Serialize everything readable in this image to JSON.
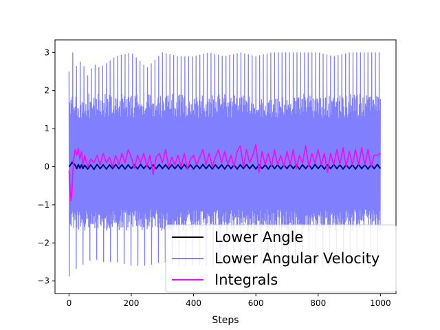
{
  "chart_data": {
    "type": "line",
    "title": "",
    "xlabel": "Steps",
    "ylabel": "",
    "xlim": [
      -45,
      1050
    ],
    "ylim": [
      -3.33,
      3.33
    ],
    "xticks": [
      0,
      200,
      400,
      600,
      800,
      1000
    ],
    "xtick_labels": [
      "0",
      "200",
      "400",
      "600",
      "800",
      "1000"
    ],
    "yticks": [
      -3,
      -2,
      -1,
      0,
      1,
      2,
      3
    ],
    "ytick_labels": [
      "−3",
      "−2",
      "−1",
      "0",
      "1",
      "2",
      "3"
    ],
    "grid": false,
    "legend_position": "lower-right",
    "series": [
      {
        "name": "Lower Angle",
        "color": "#000080",
        "x": [
          0,
          5,
          10,
          15,
          20,
          25,
          30,
          35,
          40,
          45,
          50,
          60,
          70,
          80,
          90,
          100,
          110,
          120,
          130,
          140,
          150,
          160,
          170,
          180,
          190,
          200,
          210,
          220,
          230,
          240,
          250,
          260,
          270,
          280,
          290,
          300,
          310,
          320,
          330,
          340,
          350,
          360,
          370,
          380,
          390,
          400,
          410,
          420,
          430,
          440,
          450,
          460,
          470,
          480,
          490,
          500,
          510,
          520,
          530,
          540,
          550,
          560,
          570,
          580,
          590,
          600,
          610,
          620,
          630,
          640,
          650,
          660,
          670,
          680,
          690,
          700,
          710,
          720,
          730,
          740,
          750,
          760,
          770,
          780,
          790,
          800,
          810,
          820,
          830,
          840,
          850,
          860,
          870,
          880,
          890,
          900,
          910,
          920,
          930,
          940,
          950,
          960,
          970,
          980,
          990,
          1000
        ],
        "y": [
          0.0,
          0.05,
          0.12,
          0.08,
          0.04,
          -0.05,
          0.06,
          -0.04,
          0.05,
          -0.05,
          0.04,
          -0.06,
          0.05,
          -0.07,
          0.06,
          -0.05,
          0.05,
          -0.06,
          0.05,
          -0.05,
          0.06,
          -0.05,
          0.05,
          -0.06,
          0.05,
          -0.05,
          0.05,
          -0.06,
          0.06,
          -0.05,
          0.05,
          -0.06,
          0.05,
          -0.05,
          0.06,
          -0.05,
          0.05,
          -0.06,
          0.05,
          -0.05,
          0.05,
          -0.06,
          0.06,
          -0.05,
          0.05,
          -0.06,
          0.05,
          -0.05,
          0.06,
          -0.05,
          0.05,
          -0.06,
          0.05,
          -0.05,
          0.05,
          -0.06,
          0.06,
          -0.05,
          0.05,
          -0.06,
          0.05,
          -0.05,
          0.06,
          -0.05,
          0.05,
          -0.06,
          0.05,
          -0.05,
          0.05,
          -0.06,
          0.06,
          -0.05,
          0.05,
          -0.06,
          0.05,
          -0.05,
          0.06,
          -0.05,
          0.05,
          -0.06,
          0.05,
          -0.05,
          0.05,
          -0.06,
          0.06,
          -0.05,
          0.05,
          -0.06,
          0.05,
          -0.05,
          0.06,
          -0.05,
          0.05,
          -0.06,
          0.05,
          -0.05,
          0.05,
          -0.06,
          0.06,
          -0.05,
          0.05,
          -0.06,
          0.05,
          -0.05,
          0.06,
          -0.05
        ]
      },
      {
        "name": "Lower Angular Velocity",
        "color": "#8080ff",
        "envelope_upper": {
          "x": [
            0,
            5,
            10,
            20,
            40,
            60,
            80,
            100,
            150,
            200,
            250,
            300,
            350,
            400,
            450,
            500,
            550,
            600,
            650,
            700,
            750,
            800,
            850,
            900,
            950,
            1000
          ],
          "y": [
            2.5,
            2.8,
            3.1,
            2.6,
            2.8,
            2.4,
            2.7,
            2.6,
            2.9,
            3.0,
            2.6,
            3.0,
            2.9,
            2.9,
            3.0,
            2.9,
            3.0,
            2.9,
            3.0,
            3.0,
            3.0,
            3.0,
            2.9,
            3.0,
            3.0,
            3.0
          ]
        },
        "envelope_lower": {
          "x": [
            0,
            5,
            10,
            20,
            40,
            60,
            80,
            100,
            150,
            200,
            250,
            300,
            350,
            400,
            450,
            500,
            550,
            600,
            650,
            700,
            750,
            800,
            850,
            900,
            950,
            1000
          ],
          "y": [
            -3.05,
            -2.2,
            -2.6,
            -2.7,
            -2.6,
            -2.5,
            -2.4,
            -2.5,
            -2.5,
            -2.6,
            -2.6,
            -2.5,
            -2.6,
            -2.6,
            -2.6,
            -2.6,
            -2.6,
            -2.6,
            -2.6,
            -2.5,
            -2.6,
            -2.6,
            -2.6,
            -2.6,
            -2.6,
            -2.6
          ]
        },
        "body_range": [
          -1.4,
          1.6
        ]
      },
      {
        "name": "Integrals",
        "color": "#ff00ff",
        "x": [
          0,
          3,
          6,
          9,
          12,
          15,
          20,
          25,
          30,
          35,
          40,
          45,
          50,
          60,
          70,
          80,
          90,
          100,
          110,
          120,
          130,
          140,
          150,
          160,
          170,
          180,
          190,
          200,
          210,
          220,
          230,
          240,
          250,
          260,
          270,
          280,
          290,
          300,
          310,
          320,
          330,
          340,
          350,
          360,
          370,
          380,
          390,
          400,
          410,
          420,
          430,
          440,
          450,
          460,
          470,
          480,
          490,
          500,
          510,
          520,
          530,
          540,
          550,
          560,
          570,
          580,
          590,
          600,
          610,
          620,
          630,
          640,
          650,
          660,
          670,
          680,
          690,
          700,
          710,
          720,
          730,
          740,
          750,
          760,
          770,
          780,
          790,
          800,
          810,
          820,
          830,
          840,
          850,
          860,
          870,
          880,
          890,
          900,
          910,
          920,
          930,
          940,
          950,
          960,
          970,
          980,
          990,
          1000
        ],
        "y": [
          -0.1,
          -0.5,
          -0.9,
          -0.7,
          -0.2,
          0.2,
          0.45,
          0.3,
          0.48,
          0.2,
          0.4,
          0.05,
          0.3,
          0.0,
          0.2,
          0.1,
          0.3,
          0.05,
          0.35,
          0.1,
          0.25,
          0.0,
          0.3,
          0.05,
          0.35,
          0.1,
          0.45,
          0.25,
          -0.05,
          0.3,
          0.1,
          0.35,
          0.0,
          0.3,
          -0.2,
          0.25,
          0.35,
          0.1,
          0.45,
          0.0,
          0.25,
          0.05,
          0.3,
          0.0,
          0.35,
          -0.05,
          0.2,
          0.3,
          0.05,
          0.25,
          0.45,
          0.05,
          0.35,
          0.0,
          0.25,
          0.45,
          0.1,
          0.4,
          0.05,
          0.3,
          0.0,
          0.4,
          0.55,
          0.0,
          0.45,
          0.1,
          0.3,
          0.58,
          -0.15,
          0.4,
          0.05,
          0.35,
          0.0,
          0.45,
          0.05,
          0.3,
          0.0,
          0.4,
          0.05,
          0.45,
          -0.05,
          0.3,
          0.1,
          0.55,
          0.0,
          0.35,
          0.1,
          0.45,
          0.05,
          0.35,
          -0.15,
          0.35,
          0.05,
          0.45,
          0.05,
          0.5,
          0.0,
          0.4,
          0.05,
          0.45,
          0.05,
          0.5,
          0.05,
          0.45,
          0.0,
          0.3,
          0.3,
          0.35
        ]
      }
    ]
  }
}
